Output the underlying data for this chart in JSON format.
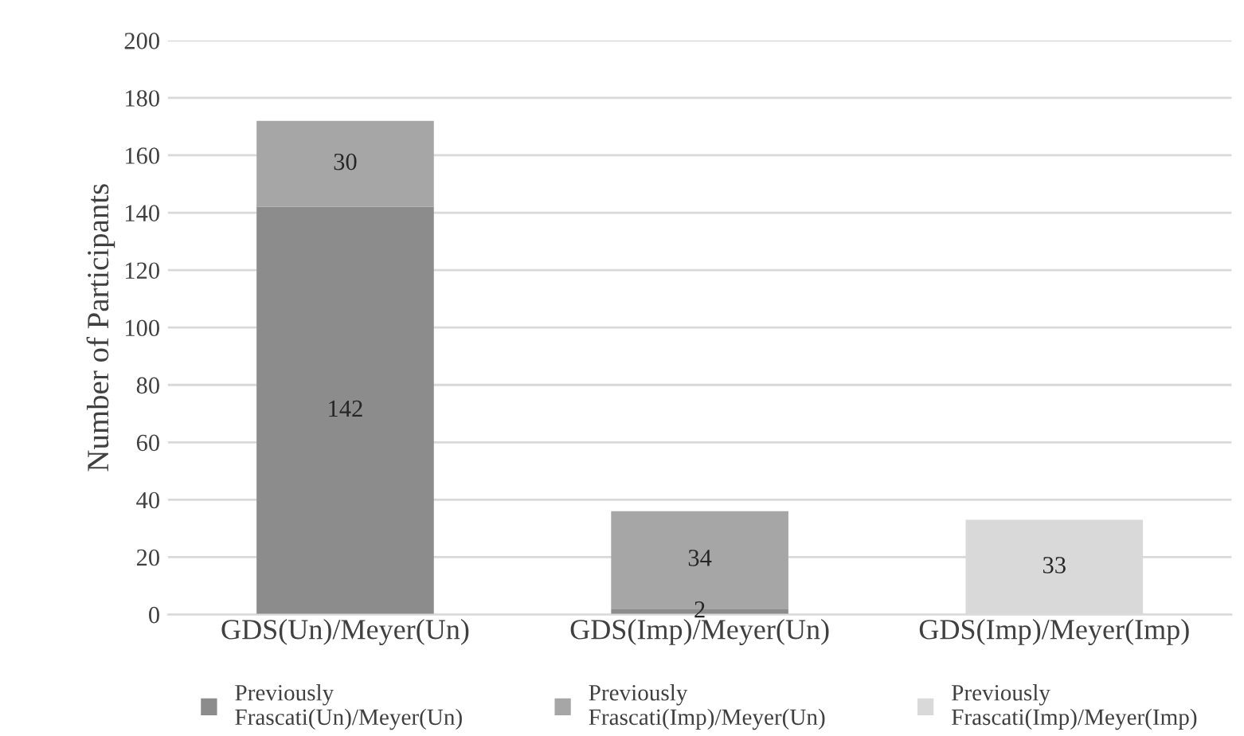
{
  "chart_data": {
    "type": "bar",
    "stacked": true,
    "ylabel": "Number of Participants",
    "categories": [
      "GDS(Un)/Meyer(Un)",
      "GDS(Imp)/Meyer(Un)",
      "GDS(Imp)/Meyer(Imp)"
    ],
    "series": [
      {
        "name": "Previously Frascati(Un)/Meyer(Un)",
        "color": "#8c8c8c",
        "values": [
          142,
          2,
          null
        ]
      },
      {
        "name": "Previously Frascati(Imp)/Meyer(Un)",
        "color": "#a6a6a6",
        "values": [
          30,
          34,
          null
        ]
      },
      {
        "name": "Previously Frascati(Imp)/Meyer(Imp)",
        "color": "#d9d9d9",
        "values": [
          null,
          null,
          33
        ]
      }
    ],
    "ylim": [
      0,
      200
    ],
    "yticks": [
      0,
      20,
      40,
      60,
      80,
      100,
      120,
      140,
      160,
      180,
      200
    ],
    "grid": "y",
    "legend": "bottom",
    "data_labels": true
  }
}
